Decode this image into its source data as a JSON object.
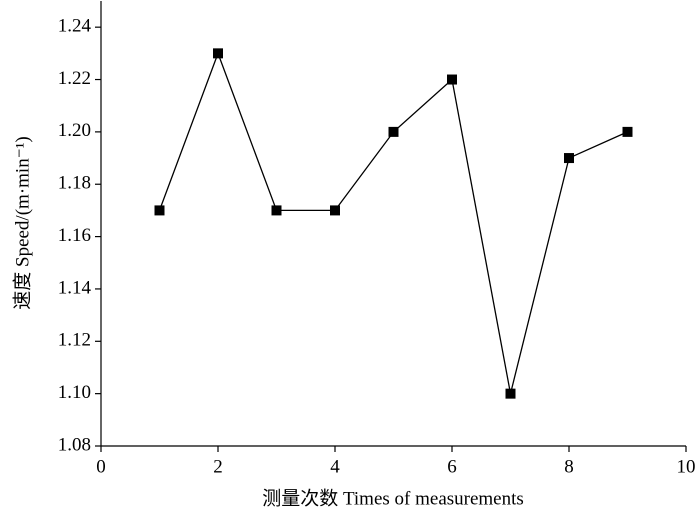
{
  "chart_data": {
    "type": "line",
    "xlabel": "测量次数 Times of measurements",
    "ylabel": "速度 Speed/(m·min⁻¹)",
    "x": [
      1,
      2,
      3,
      4,
      5,
      6,
      7,
      8,
      9
    ],
    "series": [
      {
        "color": "#000000",
        "values": [
          1.17,
          1.23,
          1.17,
          1.17,
          1.2,
          1.22,
          1.1,
          1.19,
          1.2
        ]
      }
    ],
    "xlim": [
      0,
      10
    ],
    "xticks": [
      0,
      2,
      4,
      6,
      8,
      10
    ],
    "ylim": [
      1.08,
      1.25
    ],
    "yticks": [
      {
        "value": 1.08,
        "label": "1.08"
      },
      {
        "value": 1.1,
        "label": "1.10"
      },
      1.12,
      1.14,
      1.16,
      1.18,
      {
        "value": 1.2,
        "label": "1.20"
      },
      1.22,
      1.24
    ]
  }
}
